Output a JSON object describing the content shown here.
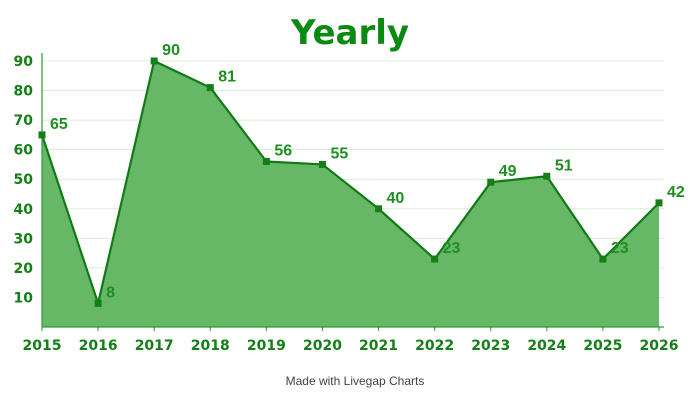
{
  "chart_data": {
    "type": "area",
    "title": "Yearly",
    "categories": [
      "2015",
      "2016",
      "2017",
      "2018",
      "2019",
      "2020",
      "2021",
      "2022",
      "2023",
      "2024",
      "2025",
      "2026"
    ],
    "series": [
      {
        "values": [
          65,
          8,
          90,
          81,
          56,
          55,
          40,
          23,
          49,
          51,
          23,
          42
        ]
      }
    ],
    "xlabel": "",
    "ylabel": "",
    "ylim": [
      0,
      90
    ],
    "yticks": [
      10,
      20,
      30,
      40,
      50,
      60,
      70,
      80,
      90
    ],
    "grid": true,
    "data_labels": true,
    "colors": {
      "title": "#0a8a10",
      "line": "#117a16",
      "area": "#66b866",
      "marker": "#137f16",
      "grid": "#d7eed7",
      "axis": "#2e9a33",
      "tick_text": "#137f16",
      "data_label": "#1f8f22"
    }
  },
  "footer": {
    "text": "Made with Livegap Charts"
  }
}
